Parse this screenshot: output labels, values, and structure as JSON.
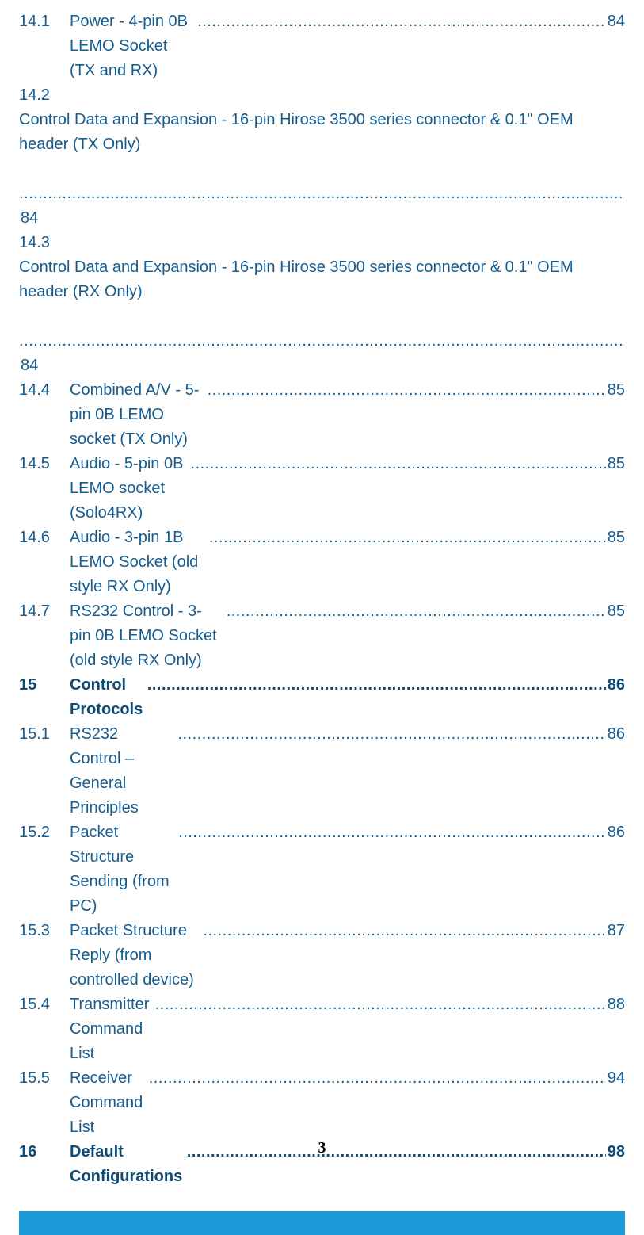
{
  "styling": {
    "text_color": "#155c8f",
    "bold_color": "#0d4b76",
    "bar_color": "#1b9cd8",
    "background_color": "#ffffff",
    "font_family": "Arial",
    "font_size_pt": 15,
    "line_height": 1.55
  },
  "toc": {
    "entries": [
      {
        "num": "14.1",
        "title": "Power - 4-pin 0B LEMO Socket (TX and RX)",
        "page": "84",
        "bold": false,
        "wrap": false
      },
      {
        "num": "14.2",
        "title": "Control Data and Expansion - 16-pin Hirose 3500 series connector & 0.1\" OEM header (TX Only)",
        "page": "84",
        "bold": false,
        "wrap": true
      },
      {
        "num": "14.3",
        "title": "Control Data and Expansion - 16-pin Hirose 3500 series connector & 0.1\" OEM header (RX Only)",
        "page": "84",
        "bold": false,
        "wrap": true
      },
      {
        "num": "14.4",
        "title": "Combined A/V - 5-pin 0B LEMO socket (TX Only)",
        "page": "85",
        "bold": false,
        "wrap": false
      },
      {
        "num": "14.5",
        "title": "Audio - 5-pin 0B LEMO socket (Solo4RX)",
        "page": "85",
        "bold": false,
        "wrap": false
      },
      {
        "num": "14.6",
        "title": "Audio - 3-pin 1B LEMO Socket (old style RX Only)",
        "page": "85",
        "bold": false,
        "wrap": false
      },
      {
        "num": "14.7",
        "title": "RS232 Control - 3-pin 0B LEMO Socket (old style RX Only)",
        "page": "85",
        "bold": false,
        "wrap": false
      },
      {
        "num": "15",
        "title": "Control Protocols",
        "page": "86",
        "bold": true,
        "wrap": false
      },
      {
        "num": "15.1",
        "title": "RS232 Control – General Principles",
        "page": "86",
        "bold": false,
        "wrap": false
      },
      {
        "num": "15.2",
        "title": "Packet Structure Sending (from PC)",
        "page": "86",
        "bold": false,
        "wrap": false
      },
      {
        "num": "15.3",
        "title": "Packet Structure Reply (from controlled device)",
        "page": "87",
        "bold": false,
        "wrap": false
      },
      {
        "num": "15.4",
        "title": "Transmitter Command List",
        "page": "88",
        "bold": false,
        "wrap": false
      },
      {
        "num": "15.5",
        "title": "Receiver Command List",
        "page": "94",
        "bold": false,
        "wrap": false
      },
      {
        "num": "16",
        "title": "Default Configurations",
        "page": "98",
        "bold": true,
        "wrap": false
      }
    ]
  },
  "page_number": "3"
}
